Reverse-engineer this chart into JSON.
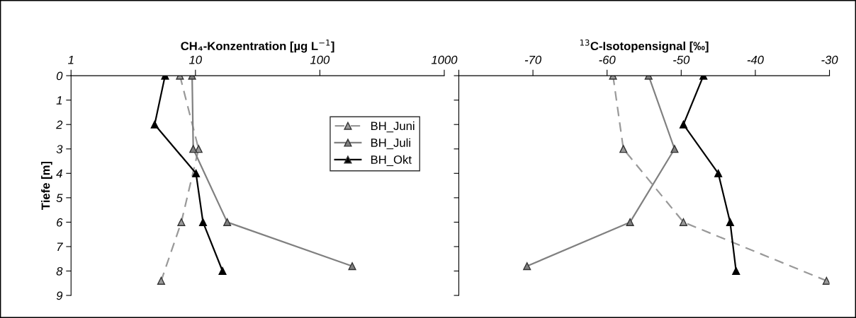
{
  "chart_data": [
    {
      "type": "line",
      "title": "CH₄-Konzentration [µg L$^{−1}$]",
      "ylabel": "Tiefe [m]",
      "log": "x",
      "xlim": [
        1,
        1000
      ],
      "xticks": [
        1,
        10,
        100,
        1000
      ],
      "ylim": [
        9,
        0
      ],
      "yticks": [
        0,
        1,
        2,
        3,
        4,
        5,
        6,
        7,
        8,
        9
      ],
      "marker": "triangle",
      "legend": "top right",
      "grid": false,
      "series": [
        {
          "name": "BH_Juni",
          "color": "#999999",
          "line_style": "dashed",
          "x": [
            7.5,
            10.6,
            7.7,
            5.3
          ],
          "values": [
            0,
            3,
            6,
            8.4
          ]
        },
        {
          "name": "BH_Juli",
          "color": "#808080",
          "line_style": "solid",
          "x": [
            9.4,
            9.6,
            18,
            182
          ],
          "values": [
            0,
            3,
            6,
            7.8
          ]
        },
        {
          "name": "BH_Okt",
          "color": "#000000",
          "line_style": "solid",
          "x": [
            5.7,
            4.7,
            10.1,
            11.5,
            16.5
          ],
          "values": [
            0,
            2,
            4,
            6,
            8
          ]
        }
      ]
    },
    {
      "type": "line",
      "title": "$^{13}$C-Isotopensignal [‰]",
      "xlim": [
        -80,
        -30
      ],
      "xticks": [
        {
          "value": -80,
          "label": null
        },
        -70,
        -60,
        -50,
        -40,
        -30
      ],
      "ylim": [
        9,
        0
      ],
      "yticks": [
        0,
        1,
        2,
        3,
        4,
        5,
        6,
        7,
        8,
        9
      ],
      "tick_labels": "x",
      "marker": "triangle",
      "grid": false,
      "series": [
        {
          "color": "#999999",
          "line_style": "dashed",
          "x": [
            -59.2,
            -57.8,
            -49.7,
            -30.4
          ],
          "values": [
            0,
            3,
            6,
            8.4
          ]
        },
        {
          "color": "#808080",
          "line_style": "solid",
          "x": [
            -54.4,
            -50.9,
            -56.9,
            -70.8
          ],
          "values": [
            0,
            3,
            6,
            7.8
          ]
        },
        {
          "color": "#000000",
          "line_style": "solid",
          "x": [
            -47,
            -49.7,
            -45,
            -43.4,
            -42.6
          ],
          "values": [
            0,
            2,
            4,
            6,
            8
          ]
        }
      ]
    }
  ]
}
